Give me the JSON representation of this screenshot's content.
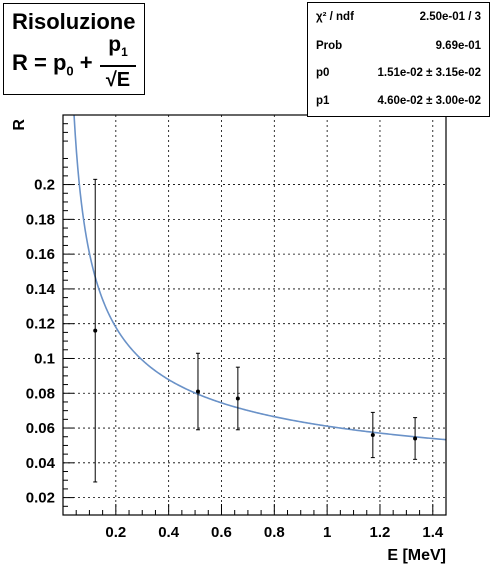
{
  "chart_data": {
    "type": "scatter",
    "title": "Risoluzione",
    "formula": {
      "lhs": "R = p",
      "lhs_sub": "0",
      "plus": " +",
      "num": "p",
      "num_sub": "1",
      "den": "√E"
    },
    "xlabel": "E [MeV]",
    "ylabel": "R",
    "xlim": [
      0,
      1.45
    ],
    "ylim": [
      0.01,
      0.24
    ],
    "xticks": [
      "0.2",
      "0.4",
      "0.6",
      "0.8",
      "1",
      "1.2",
      "1.4"
    ],
    "yticks": [
      "0.02",
      "0.04",
      "0.06",
      "0.08",
      "0.1",
      "0.12",
      "0.14",
      "0.16",
      "0.18",
      "0.2"
    ],
    "grid": true,
    "points": [
      {
        "x": 0.122,
        "y": 0.116,
        "yerr": 0.087
      },
      {
        "x": 0.511,
        "y": 0.081,
        "yerr": 0.022
      },
      {
        "x": 0.662,
        "y": 0.077,
        "yerr": 0.018
      },
      {
        "x": 1.173,
        "y": 0.056,
        "yerr": 0.013
      },
      {
        "x": 1.333,
        "y": 0.054,
        "yerr": 0.012
      }
    ],
    "fit": {
      "p0": 0.0151,
      "p1": 0.046,
      "color": "#6a92c8"
    },
    "stats": [
      {
        "label": "χ² / ndf",
        "value": "2.50e-01 / 3"
      },
      {
        "label": "Prob",
        "value": "9.69e-01"
      },
      {
        "label": "p0",
        "value": "1.51e-02 ± 3.15e-02"
      },
      {
        "label": "p1",
        "value": "4.60e-02 ± 3.00e-02"
      }
    ]
  }
}
